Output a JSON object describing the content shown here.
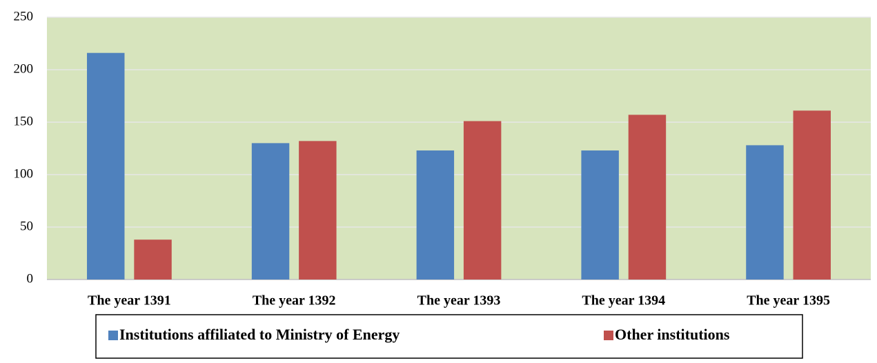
{
  "chart_data": {
    "type": "bar",
    "categories": [
      "The year 1391",
      "The year 1392",
      "The year 1393",
      "The year 1394",
      "The year 1395"
    ],
    "series": [
      {
        "name": "Institutions affiliated to Ministry of Energy",
        "color": "#4f81bd",
        "values": [
          216,
          130,
          123,
          123,
          128
        ]
      },
      {
        "name": "Other institutions",
        "color": "#c0504d",
        "values": [
          38,
          132,
          151,
          157,
          161
        ]
      }
    ],
    "ylim": [
      0,
      250
    ],
    "yticks": [
      0,
      50,
      100,
      150,
      200,
      250
    ],
    "grid": true,
    "legend": "bottom",
    "plot_background": "#d7e4bd"
  }
}
